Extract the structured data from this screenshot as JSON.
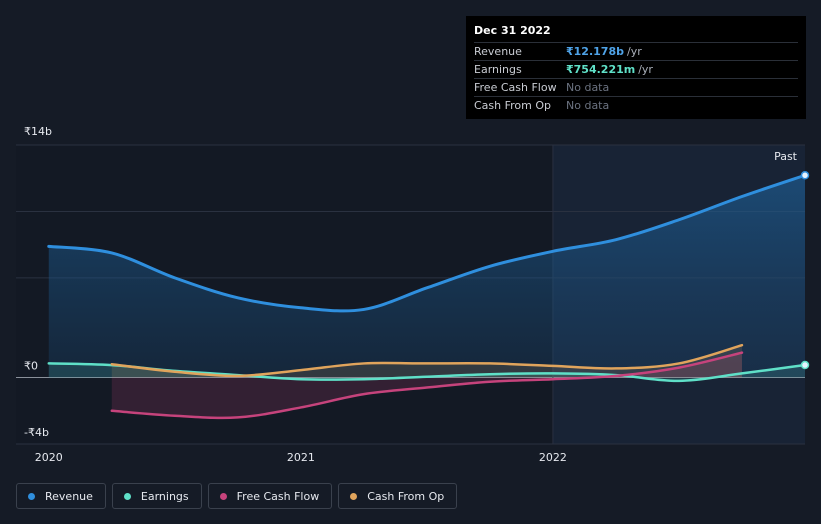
{
  "tooltip": {
    "date": "Dec 31 2022",
    "rows": [
      {
        "label": "Revenue",
        "value": "₹12.178b",
        "unit": "/yr",
        "color": "#4fa3e8"
      },
      {
        "label": "Earnings",
        "value": "₹754.221m",
        "unit": "/yr",
        "color": "#5fe0c8"
      },
      {
        "label": "Free Cash Flow",
        "value": "No data",
        "unit": "",
        "color": "#6b7280"
      },
      {
        "label": "Cash From Op",
        "value": "No data",
        "unit": "",
        "color": "#6b7280"
      }
    ]
  },
  "legend": [
    {
      "label": "Revenue",
      "color": "#2f8fde"
    },
    {
      "label": "Earnings",
      "color": "#5fe0c8"
    },
    {
      "label": "Free Cash Flow",
      "color": "#c6437c"
    },
    {
      "label": "Cash From Op",
      "color": "#e0a45c"
    }
  ],
  "past_label": "Past",
  "chart_data": {
    "type": "line",
    "ylim": [
      -4,
      14
    ],
    "y_tick_labels": [
      {
        "value": 14,
        "label": "₹14b"
      },
      {
        "value": 0,
        "label": "₹0"
      },
      {
        "value": -4,
        "label": "-₹4b"
      }
    ],
    "x_tick_labels": [
      {
        "value": 2020.0,
        "label": "2020"
      },
      {
        "value": 2021.0,
        "label": "2021"
      },
      {
        "value": 2022.0,
        "label": "2022"
      }
    ],
    "xlim": [
      2019.87,
      2023.0
    ],
    "past_start": 2022.0,
    "series": [
      {
        "name": "Revenue",
        "color": "#2f8fde",
        "fill": true,
        "x": [
          2020.0,
          2020.25,
          2020.5,
          2020.75,
          2021.0,
          2021.25,
          2021.5,
          2021.75,
          2022.0,
          2022.25,
          2022.5,
          2022.75,
          2023.0
        ],
        "y": [
          7.9,
          7.5,
          6.0,
          4.8,
          4.2,
          4.1,
          5.4,
          6.7,
          7.6,
          8.3,
          9.5,
          10.9,
          12.178
        ]
      },
      {
        "name": "Earnings",
        "color": "#5fe0c8",
        "fill": true,
        "x": [
          2020.0,
          2020.25,
          2020.5,
          2020.75,
          2021.0,
          2021.25,
          2021.5,
          2021.75,
          2022.0,
          2022.25,
          2022.5,
          2022.75,
          2023.0
        ],
        "y": [
          0.85,
          0.75,
          0.4,
          0.15,
          -0.1,
          -0.1,
          0.05,
          0.2,
          0.25,
          0.15,
          -0.2,
          0.25,
          0.754
        ]
      },
      {
        "name": "Free Cash Flow",
        "color": "#c6437c",
        "fill": true,
        "x": [
          2020.25,
          2020.5,
          2020.75,
          2021.0,
          2021.25,
          2021.5,
          2021.75,
          2022.0,
          2022.25,
          2022.5,
          2022.75
        ],
        "y": [
          -2.0,
          -2.3,
          -2.4,
          -1.8,
          -1.0,
          -0.6,
          -0.25,
          -0.1,
          0.1,
          0.6,
          1.5
        ]
      },
      {
        "name": "Cash From Op",
        "color": "#e0a45c",
        "fill": true,
        "x": [
          2020.25,
          2020.5,
          2020.75,
          2021.0,
          2021.25,
          2021.5,
          2021.75,
          2022.0,
          2022.25,
          2022.5,
          2022.75
        ],
        "y": [
          0.8,
          0.35,
          0.1,
          0.45,
          0.85,
          0.85,
          0.85,
          0.7,
          0.55,
          0.85,
          1.95
        ]
      }
    ]
  }
}
